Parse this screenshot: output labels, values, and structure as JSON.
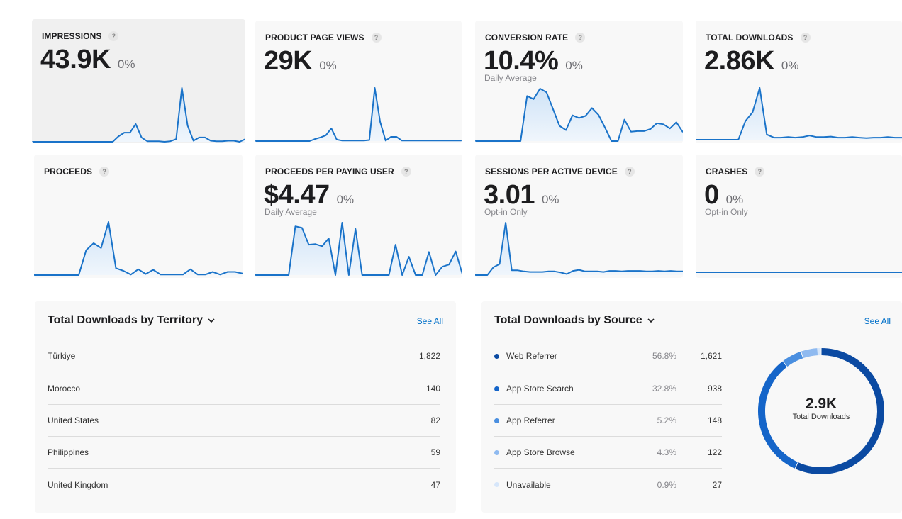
{
  "colors": {
    "accent": "#0070c9",
    "line": "#1a73c9",
    "fill_top": "#cfe3f7",
    "fill_bottom": "#f0f6fc"
  },
  "metrics": [
    {
      "title": "IMPRESSIONS",
      "help": "?",
      "value": "43.9K",
      "change": "0%",
      "sub": "",
      "series": [
        0,
        0,
        0,
        0,
        0,
        0,
        0,
        0,
        0,
        0,
        0,
        0,
        0,
        0,
        0,
        0.1,
        0.17,
        0.17,
        0.33,
        0.08,
        0.01,
        0.01,
        0.01,
        0,
        0.01,
        0.05,
        1,
        0.3,
        0.02,
        0.08,
        0.08,
        0.02,
        0.01,
        0.01,
        0.02,
        0.02,
        0,
        0.05
      ]
    },
    {
      "title": "PRODUCT PAGE VIEWS",
      "help": "?",
      "value": "29K",
      "change": "0%",
      "sub": "",
      "series": [
        0,
        0,
        0,
        0,
        0,
        0,
        0,
        0,
        0,
        0,
        0,
        0.04,
        0.07,
        0.11,
        0.24,
        0.03,
        0.01,
        0.01,
        0.01,
        0.01,
        0.01,
        0.02,
        1,
        0.36,
        0.01,
        0.08,
        0.08,
        0.01,
        0.01,
        0.01,
        0.01,
        0.01,
        0.01,
        0.01,
        0.01,
        0.01,
        0.01,
        0.01,
        0.01
      ]
    },
    {
      "title": "CONVERSION RATE",
      "help": "?",
      "value": "10.4%",
      "change": "0%",
      "sub": "Daily Average",
      "series": [
        0,
        0,
        0,
        0,
        0,
        0,
        0,
        0,
        0.86,
        0.8,
        1,
        0.93,
        0.61,
        0.29,
        0.21,
        0.49,
        0.44,
        0.48,
        0.63,
        0.5,
        0.26,
        0,
        0,
        0.41,
        0.18,
        0.19,
        0.19,
        0.23,
        0.34,
        0.32,
        0.24,
        0.36,
        0.17
      ]
    },
    {
      "title": "TOTAL DOWNLOADS",
      "help": "?",
      "value": "2.86K",
      "change": "0%",
      "sub": "",
      "series": [
        0,
        0,
        0,
        0,
        0,
        0,
        0,
        0.36,
        0.53,
        1,
        0.1,
        0.04,
        0.04,
        0.05,
        0.04,
        0.05,
        0.08,
        0.05,
        0.05,
        0.06,
        0.04,
        0.04,
        0.05,
        0.04,
        0.03,
        0.04,
        0.04,
        0.05,
        0.04,
        0.04
      ]
    },
    {
      "title": "PROCEEDS",
      "help": "?",
      "value": "",
      "change": "",
      "sub": "",
      "series": [
        0,
        0,
        0,
        0,
        0,
        0,
        0,
        0.47,
        0.6,
        0.51,
        1,
        0.13,
        0.08,
        0.01,
        0.11,
        0.02,
        0.1,
        0.01,
        0.01,
        0.01,
        0.01,
        0.11,
        0.01,
        0.01,
        0.06,
        0.01,
        0.06,
        0.06,
        0.03
      ]
    },
    {
      "title": "PROCEEDS PER PAYING USER",
      "help": "?",
      "value": "$4.47",
      "change": "0%",
      "sub": "Daily Average",
      "series": [
        0,
        0,
        0,
        0,
        0,
        0,
        0.93,
        0.9,
        0.58,
        0.59,
        0.55,
        0.7,
        0,
        1,
        0,
        0.88,
        0,
        0,
        0,
        0,
        0,
        0.58,
        0,
        0.35,
        0,
        0,
        0.44,
        0,
        0.16,
        0.2,
        0.45,
        0.02
      ]
    },
    {
      "title": "SESSIONS PER ACTIVE DEVICE",
      "help": "?",
      "value": "3.01",
      "change": "0%",
      "sub": "Opt-in Only",
      "series": [
        0,
        0,
        0,
        0.15,
        0.21,
        1,
        0.09,
        0.09,
        0.07,
        0.06,
        0.06,
        0.06,
        0.07,
        0.07,
        0.05,
        0.02,
        0.08,
        0.1,
        0.07,
        0.07,
        0.07,
        0.06,
        0.08,
        0.08,
        0.07,
        0.08,
        0.08,
        0.08,
        0.07,
        0.07,
        0.08,
        0.07,
        0.08,
        0.07,
        0.07
      ]
    },
    {
      "title": "CRASHES",
      "help": "?",
      "value": "0",
      "change": "0%",
      "sub": "Opt-in Only",
      "series": [
        0,
        0,
        0,
        0,
        0,
        0,
        0,
        0,
        0,
        0,
        0,
        0
      ]
    }
  ],
  "territory": {
    "title": "Total Downloads by Territory",
    "see_all": "See All",
    "rows": [
      {
        "name": "Türkiye",
        "value": "1,822"
      },
      {
        "name": "Morocco",
        "value": "140"
      },
      {
        "name": "United States",
        "value": "82"
      },
      {
        "name": "Philippines",
        "value": "59"
      },
      {
        "name": "United Kingdom",
        "value": "47"
      }
    ]
  },
  "source": {
    "title": "Total Downloads by Source",
    "see_all": "See All",
    "rows": [
      {
        "name": "Web Referrer",
        "pct": "56.8%",
        "value": "1,621",
        "color": "#0b4aa2",
        "share": 56.8
      },
      {
        "name": "App Store Search",
        "pct": "32.8%",
        "value": "938",
        "color": "#1565c9",
        "share": 32.8
      },
      {
        "name": "App Referrer",
        "pct": "5.2%",
        "value": "148",
        "color": "#4a8fe0",
        "share": 5.2
      },
      {
        "name": "App Store Browse",
        "pct": "4.3%",
        "value": "122",
        "color": "#8fbaf0",
        "share": 4.3
      },
      {
        "name": "Unavailable",
        "pct": "0.9%",
        "value": "27",
        "color": "#d6e6fa",
        "share": 0.9
      }
    ],
    "donut_value": "2.9K",
    "donut_label": "Total Downloads"
  }
}
